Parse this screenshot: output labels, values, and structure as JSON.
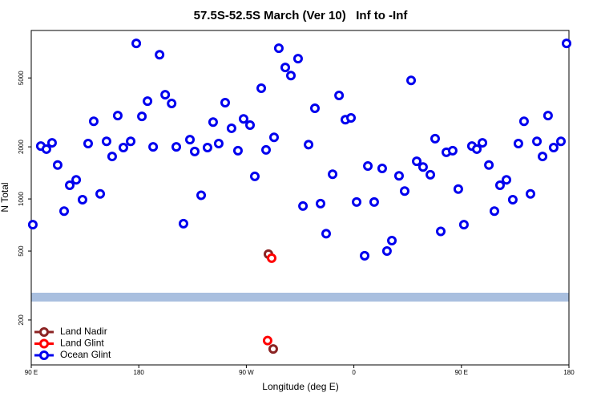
{
  "chart_data": {
    "type": "scatter",
    "title": "57.5S-52.5S March (Ver 10)   Inf to -Inf",
    "x_label": "Longitude (deg E)",
    "y_label": "N Total",
    "xlim": [
      90,
      540
    ],
    "xticks": [
      {
        "value": 90,
        "label": "90 E"
      },
      {
        "value": 180,
        "label": "180"
      },
      {
        "value": 270,
        "label": "90 W"
      },
      {
        "value": 360,
        "label": "0"
      },
      {
        "value": 450,
        "label": "90 E"
      },
      {
        "value": 540,
        "label": "180"
      }
    ],
    "ylim": [
      110,
      9400
    ],
    "yticks": [
      200,
      500,
      1000,
      2000,
      5000
    ],
    "log_y": true,
    "legend": "lower left",
    "series": [
      {
        "name": "Land Nadir",
        "color": "#8b2323",
        "x": [
          288.5,
          292.5
        ],
        "values": [
          480,
          136
        ]
      },
      {
        "name": "Land Glint",
        "color": "#ff0000",
        "x": [
          291.2,
          287.8
        ],
        "values": [
          455,
          152
        ]
      },
      {
        "name": "Ocean Glint",
        "color": "#0000ee",
        "x": [
          91.3,
          98.0,
          102.7,
          107.4,
          112.1,
          117.5,
          122.2,
          127.6,
          132.9,
          137.6,
          142.3,
          147.7,
          153.0,
          157.7,
          162.4,
          167.1,
          173.2,
          177.9,
          182.6,
          187.3,
          192.0,
          197.4,
          202.1,
          207.5,
          211.4,
          217.4,
          222.8,
          226.8,
          232.2,
          237.5,
          242.2,
          246.9,
          252.3,
          257.6,
          263.0,
          267.7,
          273.1,
          277.1,
          282.5,
          286.5,
          293.2,
          297.2,
          302.6,
          307.3,
          313.3,
          317.4,
          322.1,
          327.4,
          332.1,
          336.8,
          342.2,
          347.6,
          352.9,
          357.6,
          362.3,
          369.0,
          371.7,
          377.0,
          383.7,
          387.7,
          391.8,
          397.8,
          402.5,
          407.9,
          412.6,
          417.9,
          424.0,
          428.0,
          432.7,
          437.4,
          442.7,
          447.4,
          452.1,
          458.8,
          462.9,
          467.6,
          473.0,
          477.6,
          482.3,
          487.7,
          493.0,
          497.7,
          502.4,
          507.8,
          513.2,
          517.9,
          522.5,
          527.2,
          533.3,
          538.0
        ],
        "values": [
          710,
          2020,
          1940,
          2110,
          1570,
          850,
          1200,
          1290,
          990,
          2090,
          2810,
          1070,
          2150,
          1760,
          3030,
          1980,
          2150,
          7910,
          3000,
          3670,
          2000,
          6810,
          4000,
          3560,
          2000,
          720,
          2200,
          1880,
          1050,
          1980,
          2780,
          2090,
          3600,
          2560,
          1900,
          2900,
          2670,
          1350,
          4360,
          1920,
          2270,
          7420,
          5750,
          5160,
          6460,
          910,
          2060,
          3340,
          940,
          630,
          1390,
          3960,
          2870,
          2940,
          960,
          470,
          1550,
          960,
          1500,
          500,
          575,
          1360,
          1110,
          4840,
          1650,
          1530,
          1380,
          2230,
          650,
          1860,
          1900,
          1140,
          710,
          2020,
          1940,
          2110,
          1570,
          850,
          1200,
          1290,
          990,
          2090,
          2810,
          1070,
          2150,
          1760,
          3030,
          1980,
          2150,
          7910
        ]
      }
    ]
  }
}
